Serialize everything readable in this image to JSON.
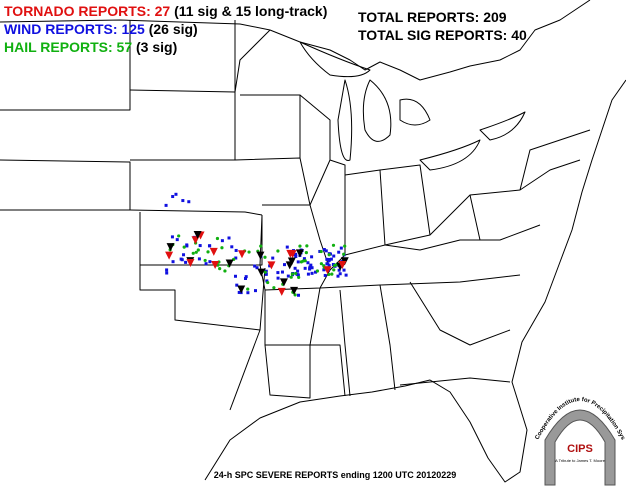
{
  "legend": {
    "tornado": {
      "label": "TORNADO REPORTS: 27",
      "detail": "(11 sig & 15 long-track)"
    },
    "wind": {
      "label": "WIND REPORTS: 125",
      "detail": "(26 sig)"
    },
    "hail": {
      "label": "HAIL REPORTS: 57",
      "detail": "(3 sig)"
    }
  },
  "totals": {
    "total": "TOTAL REPORTS: 209",
    "sig": "TOTAL SIG REPORTS: 40"
  },
  "footer": "24-h SPC SEVERE REPORTS ending 1200 UTC 20120229",
  "logo": {
    "name": "CIPS",
    "institute": "Cooperative Institute for Precipitation Systems",
    "tribute": "A Tribute to James T. Moore"
  }
}
